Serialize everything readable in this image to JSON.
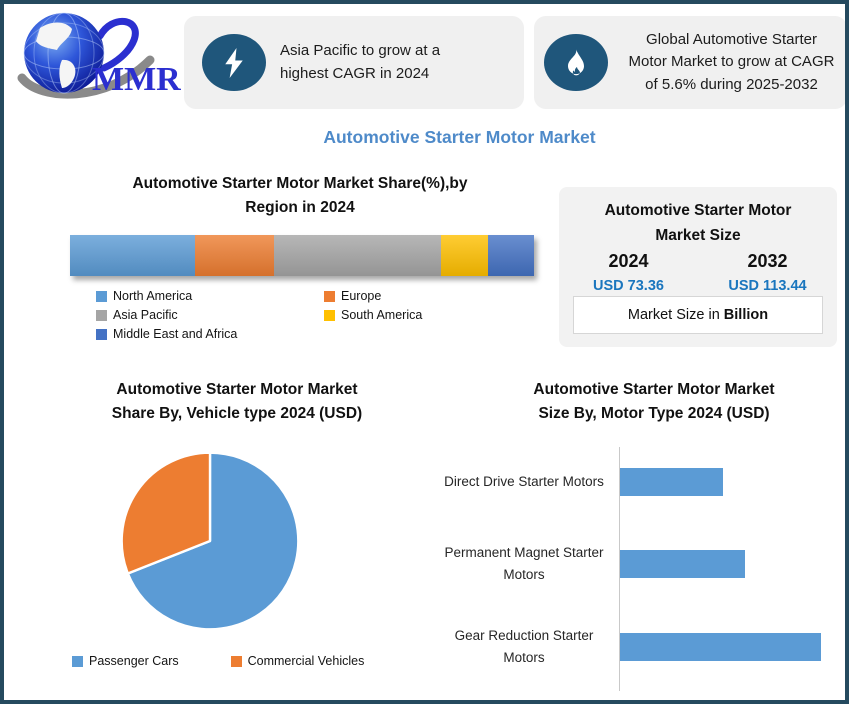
{
  "frame": {
    "border_color": "#254A5F",
    "background": "#FFFFFF"
  },
  "logo": {
    "text": "MMR"
  },
  "callouts": [
    {
      "icon": "lightning-icon",
      "lines": [
        "Asia Pacific to grow at a",
        "highest CAGR in 2024"
      ]
    },
    {
      "icon": "flame-icon",
      "lines": [
        "Global Automotive Starter",
        "Motor Market to grow at CAGR",
        "of 5.6% during 2025-2032"
      ]
    }
  ],
  "page_title": "Automotive Starter Motor Market",
  "market_size_panel": {
    "title_lines": [
      "Automotive Starter Motor",
      "Market Size"
    ],
    "columns": [
      {
        "year": "2024",
        "value": "USD 73.36"
      },
      {
        "year": "2032",
        "value": "USD 113.44"
      }
    ],
    "footnote_prefix": "Market Size in ",
    "footnote_bold": "Billion",
    "value_color": "#1B76BE"
  },
  "chart_data": [
    {
      "id": "region_share",
      "type": "bar",
      "subtype": "stacked_horizontal_single_bar",
      "title": "Automotive Starter Motor Market Share(%),by Region in 2024",
      "title_lines": [
        "Automotive Starter Motor Market Share(%),by",
        "Region in 2024"
      ],
      "categories": [
        "North America",
        "Europe",
        "Asia Pacific",
        "South America",
        "Middle East and Africa"
      ],
      "values_pct": [
        27,
        17,
        36,
        10,
        10
      ],
      "colors": [
        "#5B9BD5",
        "#ED7D31",
        "#A5A5A5",
        "#FFC000",
        "#4472C4"
      ],
      "legend_position": "bottom",
      "axes_hidden": true
    },
    {
      "id": "vehicle_type_share",
      "type": "pie",
      "title": "Automotive Starter Motor Market Share By, Vehicle type 2024  (USD)",
      "title_lines": [
        "Automotive Starter Motor Market",
        "Share By, Vehicle type 2024  (USD)"
      ],
      "categories": [
        "Passenger Cars",
        "Commercial Vehicles"
      ],
      "values_pct": [
        69,
        31
      ],
      "colors": [
        "#5B9BD5",
        "#ED7D31"
      ],
      "start_angle_deg": 0,
      "slice_border_color": "#FFFFFF",
      "legend_position": "bottom"
    },
    {
      "id": "motor_type_size",
      "type": "bar",
      "subtype": "horizontal",
      "title": "Automotive Starter Motor Market Size By, Motor Type 2024  (USD)",
      "title_lines": [
        "Automotive Starter Motor Market",
        "Size By, Motor Type 2024  (USD)"
      ],
      "categories": [
        "Direct Drive Starter Motors",
        "Permanent Magnet Starter Motors",
        "Gear Reduction Starter Motors"
      ],
      "values_pct_of_max": [
        51,
        62,
        100
      ],
      "bar_color": "#5B9BD5",
      "value_labels_shown": false,
      "axis_ticks_shown": false
    }
  ]
}
